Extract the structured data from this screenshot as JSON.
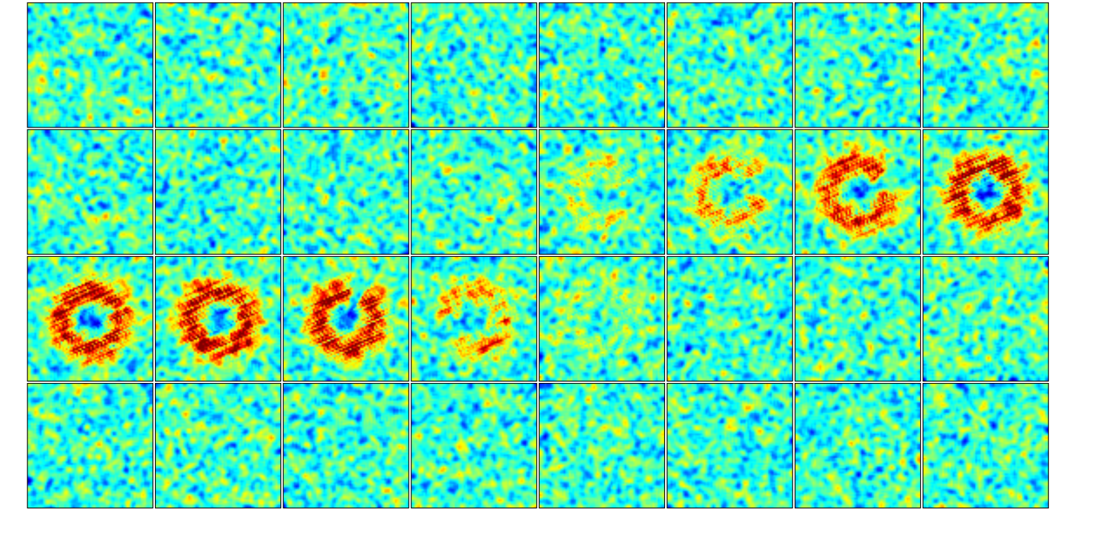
{
  "figure": {
    "rows": 4,
    "cols": 8,
    "colormap": "jet",
    "border_color": "#000000",
    "background_color": "#ffffff",
    "noise_seed": 7
  },
  "tiles": [
    {
      "index": 0,
      "ring": 0
    },
    {
      "index": 1,
      "ring": 0
    },
    {
      "index": 2,
      "ring": 0
    },
    {
      "index": 3,
      "ring": 0
    },
    {
      "index": 4,
      "ring": 0
    },
    {
      "index": 5,
      "ring": 0
    },
    {
      "index": 6,
      "ring": 0
    },
    {
      "index": 7,
      "ring": 0
    },
    {
      "index": 8,
      "ring": 0
    },
    {
      "index": 9,
      "ring": 0
    },
    {
      "index": 10,
      "ring": 0
    },
    {
      "index": 11,
      "ring": 0.08
    },
    {
      "index": 12,
      "ring": 0.3,
      "gap_angle_deg": 10,
      "gap_width_deg": 70
    },
    {
      "index": 13,
      "ring": 0.55,
      "gap_angle_deg": -15,
      "gap_width_deg": 55
    },
    {
      "index": 14,
      "ring": 0.85,
      "gap_angle_deg": -20,
      "gap_width_deg": 45
    },
    {
      "index": 15,
      "ring": 1.0
    },
    {
      "index": 16,
      "ring": 1.0
    },
    {
      "index": 17,
      "ring": 1.0
    },
    {
      "index": 18,
      "ring": 0.95,
      "gap_angle_deg": -70,
      "gap_width_deg": 30
    },
    {
      "index": 19,
      "ring": 0.6,
      "gap_angle_deg": 160,
      "gap_width_deg": 70
    },
    {
      "index": 20,
      "ring": 0.22
    },
    {
      "index": 21,
      "ring": 0
    },
    {
      "index": 22,
      "ring": 0
    },
    {
      "index": 23,
      "ring": 0
    },
    {
      "index": 24,
      "ring": 0
    },
    {
      "index": 25,
      "ring": 0
    },
    {
      "index": 26,
      "ring": 0
    },
    {
      "index": 27,
      "ring": 0
    },
    {
      "index": 28,
      "ring": 0
    },
    {
      "index": 29,
      "ring": 0
    },
    {
      "index": 30,
      "ring": 0
    },
    {
      "index": 31,
      "ring": 0
    }
  ]
}
